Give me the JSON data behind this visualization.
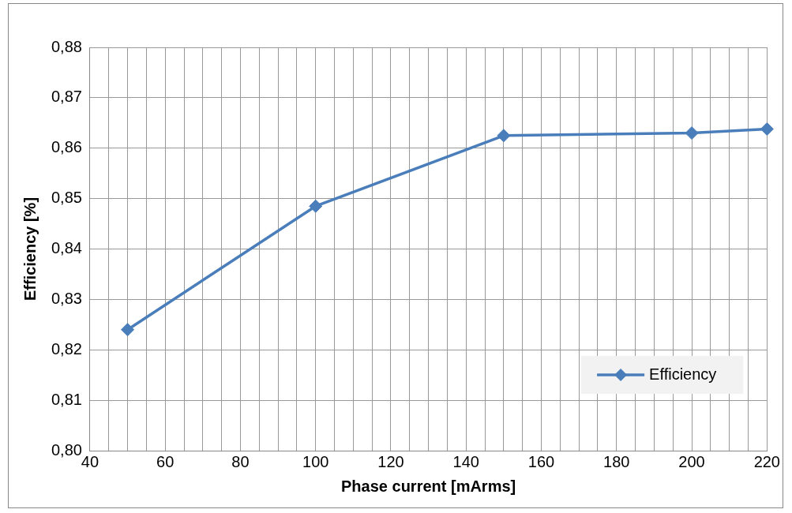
{
  "chart_data": {
    "type": "line",
    "xlabel": "Phase current [mArms]",
    "ylabel": "Efficiency [%]",
    "x": [
      50,
      100,
      150,
      200,
      220
    ],
    "series": [
      {
        "name": "Efficiency",
        "color": "#4a7ebb",
        "values": [
          0.824,
          0.8485,
          0.8625,
          0.863,
          0.8638
        ]
      }
    ],
    "xlim": [
      40,
      220
    ],
    "xticks": [
      40,
      {
        "value": 45,
        "label": null
      },
      {
        "value": 50,
        "label": null
      },
      {
        "value": 55,
        "label": null
      },
      60,
      {
        "value": 65,
        "label": null
      },
      {
        "value": 70,
        "label": null
      },
      {
        "value": 75,
        "label": null
      },
      80,
      {
        "value": 85,
        "label": null
      },
      {
        "value": 90,
        "label": null
      },
      {
        "value": 95,
        "label": null
      },
      100,
      {
        "value": 105,
        "label": null
      },
      {
        "value": 110,
        "label": null
      },
      {
        "value": 115,
        "label": null
      },
      120,
      {
        "value": 125,
        "label": null
      },
      {
        "value": 130,
        "label": null
      },
      {
        "value": 135,
        "label": null
      },
      140,
      {
        "value": 145,
        "label": null
      },
      {
        "value": 150,
        "label": null
      },
      {
        "value": 155,
        "label": null
      },
      160,
      {
        "value": 165,
        "label": null
      },
      {
        "value": 170,
        "label": null
      },
      {
        "value": 175,
        "label": null
      },
      180,
      {
        "value": 185,
        "label": null
      },
      {
        "value": 190,
        "label": null
      },
      {
        "value": 195,
        "label": null
      },
      200,
      {
        "value": 205,
        "label": null
      },
      {
        "value": 210,
        "label": null
      },
      {
        "value": 215,
        "label": null
      },
      220
    ],
    "ylim": [
      0.8,
      0.88
    ],
    "yticks": [
      {
        "value": 0.8,
        "label": "0,80"
      },
      {
        "value": 0.81,
        "label": "0,81"
      },
      {
        "value": 0.82,
        "label": "0,82"
      },
      {
        "value": 0.83,
        "label": "0,83"
      },
      {
        "value": 0.84,
        "label": "0,84"
      },
      {
        "value": 0.85,
        "label": "0,85"
      },
      {
        "value": 0.86,
        "label": "0,86"
      },
      {
        "value": 0.87,
        "label": "0,87"
      },
      {
        "value": 0.88,
        "label": "0,88"
      }
    ],
    "grid": true,
    "legend": "bottom right",
    "marker": "diamond",
    "line_style": "solid"
  }
}
